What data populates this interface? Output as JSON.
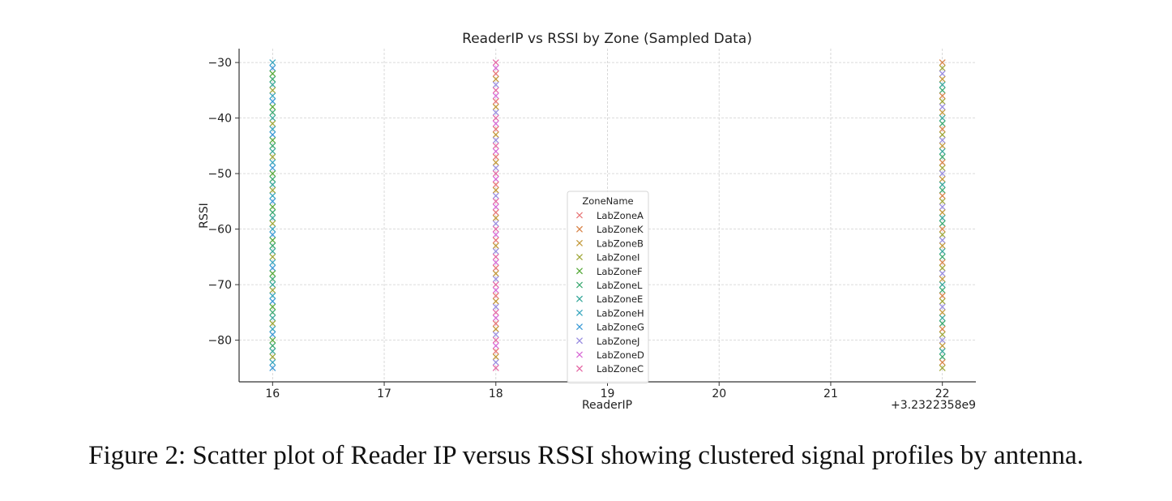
{
  "caption": "Figure 2: Scatter plot of Reader IP versus RSSI showing clustered signal profiles by antenna.",
  "chart_data": {
    "type": "scatter",
    "title": "ReaderIP vs RSSI by Zone (Sampled Data)",
    "xlabel": "ReaderIP",
    "ylabel": "RSSI",
    "x_offset_label": "+3.2322358e9",
    "xlim": [
      15.7,
      22.3
    ],
    "ylim": [
      -87.5,
      -27.5
    ],
    "x_ticks": [
      16,
      17,
      18,
      19,
      20,
      21,
      22
    ],
    "x_tick_labels": [
      "16",
      "17",
      "18",
      "19",
      "20",
      "21",
      "22"
    ],
    "y_ticks": [
      -30,
      -40,
      -50,
      -60,
      -70,
      -80
    ],
    "y_tick_labels": [
      "−30",
      "−40",
      "−50",
      "−60",
      "−70",
      "−80"
    ],
    "grid": true,
    "marker": "x",
    "legend": {
      "title": "ZoneName",
      "placement": "lower-center",
      "entries": [
        {
          "name": "LabZoneA",
          "color": "#e8787a"
        },
        {
          "name": "LabZoneK",
          "color": "#d9854a"
        },
        {
          "name": "LabZoneB",
          "color": "#c49a3c"
        },
        {
          "name": "LabZoneI",
          "color": "#a0a83a"
        },
        {
          "name": "LabZoneF",
          "color": "#5aab3e"
        },
        {
          "name": "LabZoneL",
          "color": "#3daa72"
        },
        {
          "name": "LabZoneE",
          "color": "#3aa99c"
        },
        {
          "name": "LabZoneH",
          "color": "#3aa7bf"
        },
        {
          "name": "LabZoneG",
          "color": "#3b9ad6"
        },
        {
          "name": "LabZoneJ",
          "color": "#9a8de0"
        },
        {
          "name": "LabZoneD",
          "color": "#d86ad6"
        },
        {
          "name": "LabZoneC",
          "color": "#e56aa6"
        }
      ]
    },
    "series": [
      {
        "x": 16,
        "y_min": -85,
        "y_max": -30,
        "step": 1,
        "colors": [
          "#3aa7bf",
          "#3b9ad6",
          "#5aab3e",
          "#3daa72",
          "#3aa99c",
          "#a0a83a"
        ]
      },
      {
        "x": 18,
        "y_min": -85,
        "y_max": -30,
        "step": 1,
        "colors": [
          "#e56aa6",
          "#d86ad6",
          "#e8787a",
          "#c49a3c",
          "#9a8de0"
        ]
      },
      {
        "x": 22,
        "y_min": -85,
        "y_max": -30,
        "step": 1,
        "colors": [
          "#d9854a",
          "#a0a83a",
          "#9a8de0",
          "#c49a3c",
          "#3aa99c",
          "#3daa72"
        ]
      }
    ]
  }
}
